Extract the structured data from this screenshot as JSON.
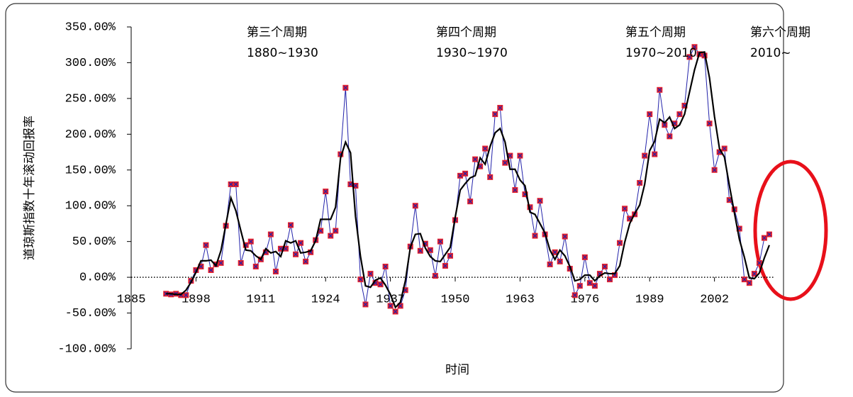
{
  "chart_data": {
    "type": "line",
    "ylabel": "道琼斯指数十年滚动回报率",
    "xlabel": "时间",
    "annotations": [
      [
        "第三个周期",
        "1880~1930"
      ],
      [
        "第四个周期",
        "1930~1970"
      ],
      [
        "第五个周期",
        "1970~2010"
      ],
      [
        "第六个周期",
        "2010~"
      ]
    ],
    "x": [
      1892,
      1893,
      1894,
      1895,
      1896,
      1897,
      1898,
      1899,
      1900,
      1901,
      1902,
      1903,
      1904,
      1905,
      1906,
      1907,
      1908,
      1909,
      1910,
      1911,
      1912,
      1913,
      1914,
      1915,
      1916,
      1917,
      1918,
      1919,
      1920,
      1921,
      1922,
      1923,
      1924,
      1925,
      1926,
      1927,
      1928,
      1929,
      1930,
      1931,
      1932,
      1933,
      1934,
      1935,
      1936,
      1937,
      1938,
      1939,
      1940,
      1941,
      1942,
      1943,
      1944,
      1945,
      1946,
      1947,
      1948,
      1949,
      1950,
      1951,
      1952,
      1953,
      1954,
      1955,
      1956,
      1957,
      1958,
      1959,
      1960,
      1961,
      1962,
      1963,
      1964,
      1965,
      1966,
      1967,
      1968,
      1969,
      1970,
      1971,
      1972,
      1973,
      1974,
      1975,
      1976,
      1977,
      1978,
      1979,
      1980,
      1981,
      1982,
      1983,
      1984,
      1985,
      1986,
      1987,
      1988,
      1989,
      1990,
      1991,
      1992,
      1993,
      1994,
      1995,
      1996,
      1997,
      1998,
      1999,
      2000,
      2001,
      2002,
      2003,
      2004,
      2005,
      2006,
      2007,
      2008,
      2009,
      2010,
      2011,
      2012,
      2013
    ],
    "series": [
      {
        "color": "#2222aa",
        "marker_color": "#e8202a",
        "values": [
          -23,
          -24,
          -23,
          -25,
          -25,
          -5,
          10,
          15,
          45,
          10,
          18,
          20,
          72,
          130,
          130,
          20,
          45,
          50,
          15,
          25,
          35,
          60,
          8,
          40,
          40,
          73,
          32,
          48,
          22,
          35,
          52,
          65,
          120,
          58,
          65,
          172,
          265,
          130,
          128,
          -3,
          -38,
          5,
          -8,
          -10,
          15,
          -40,
          -48,
          -40,
          -18,
          43,
          100,
          37,
          47,
          38,
          2,
          50,
          16,
          30,
          80,
          142,
          145,
          106,
          165,
          155,
          180,
          140,
          228,
          237,
          160,
          170,
          122,
          170,
          116,
          98,
          58,
          107,
          60,
          18,
          35,
          22,
          57,
          12,
          -25,
          -12,
          28,
          -8,
          -12,
          5,
          15,
          -3,
          3,
          48,
          96,
          82,
          88,
          132,
          170,
          228,
          172,
          262,
          213,
          197,
          215,
          228,
          240,
          308,
          322,
          312,
          310,
          215,
          150,
          175,
          180,
          108,
          95,
          68,
          -3,
          -8,
          5,
          20,
          55,
          60
        ]
      },
      {
        "color": "#000000",
        "values": [
          -23,
          -23,
          -24,
          -24,
          -18,
          -7,
          7,
          23,
          23,
          24,
          16,
          37,
          74,
          111,
          93,
          65,
          38,
          37,
          30,
          25,
          40,
          34,
          36,
          29,
          51,
          48,
          51,
          34,
          35,
          37,
          51,
          81,
          81,
          81,
          98,
          167,
          189,
          174,
          85,
          29,
          -12,
          -14,
          -4,
          -1,
          -11,
          -24,
          -42,
          -35,
          -5,
          42,
          60,
          61,
          41,
          29,
          23,
          22,
          32,
          42,
          84,
          122,
          131,
          139,
          142,
          167,
          158,
          183,
          202,
          208,
          189,
          151,
          151,
          136,
          128,
          91,
          88,
          75,
          62,
          38,
          25,
          38,
          30,
          15,
          -5,
          -3,
          3,
          3,
          -5,
          2,
          6,
          5,
          5,
          16,
          49,
          75,
          89,
          101,
          130,
          177,
          190,
          221,
          216,
          224,
          208,
          213,
          228,
          259,
          290,
          314,
          315,
          279,
          225,
          180,
          168,
          128,
          90,
          53,
          28,
          -1,
          -2,
          6,
          27,
          45
        ]
      }
    ],
    "xlim": [
      1885,
      2014
    ],
    "xticks": [
      1885,
      1898,
      1911,
      1924,
      1937,
      1950,
      1963,
      1976,
      1989,
      2002
    ],
    "ylim": [
      -100,
      350
    ],
    "yticks": [
      {
        "value": 350,
        "label": "350.00%"
      },
      {
        "value": 300,
        "label": "300.00%"
      },
      {
        "value": 250,
        "label": "250.00%"
      },
      {
        "value": 200,
        "label": "200.00%"
      },
      {
        "value": 150,
        "label": "150.00%"
      },
      {
        "value": 100,
        "label": "100.00%"
      },
      {
        "value": 50,
        "label": "50.00%"
      },
      {
        "value": 0,
        "label": "0.00%"
      },
      {
        "value": -50,
        "label": "-50.00%"
      },
      {
        "value": -100,
        "label": "-100.00%"
      }
    ]
  }
}
